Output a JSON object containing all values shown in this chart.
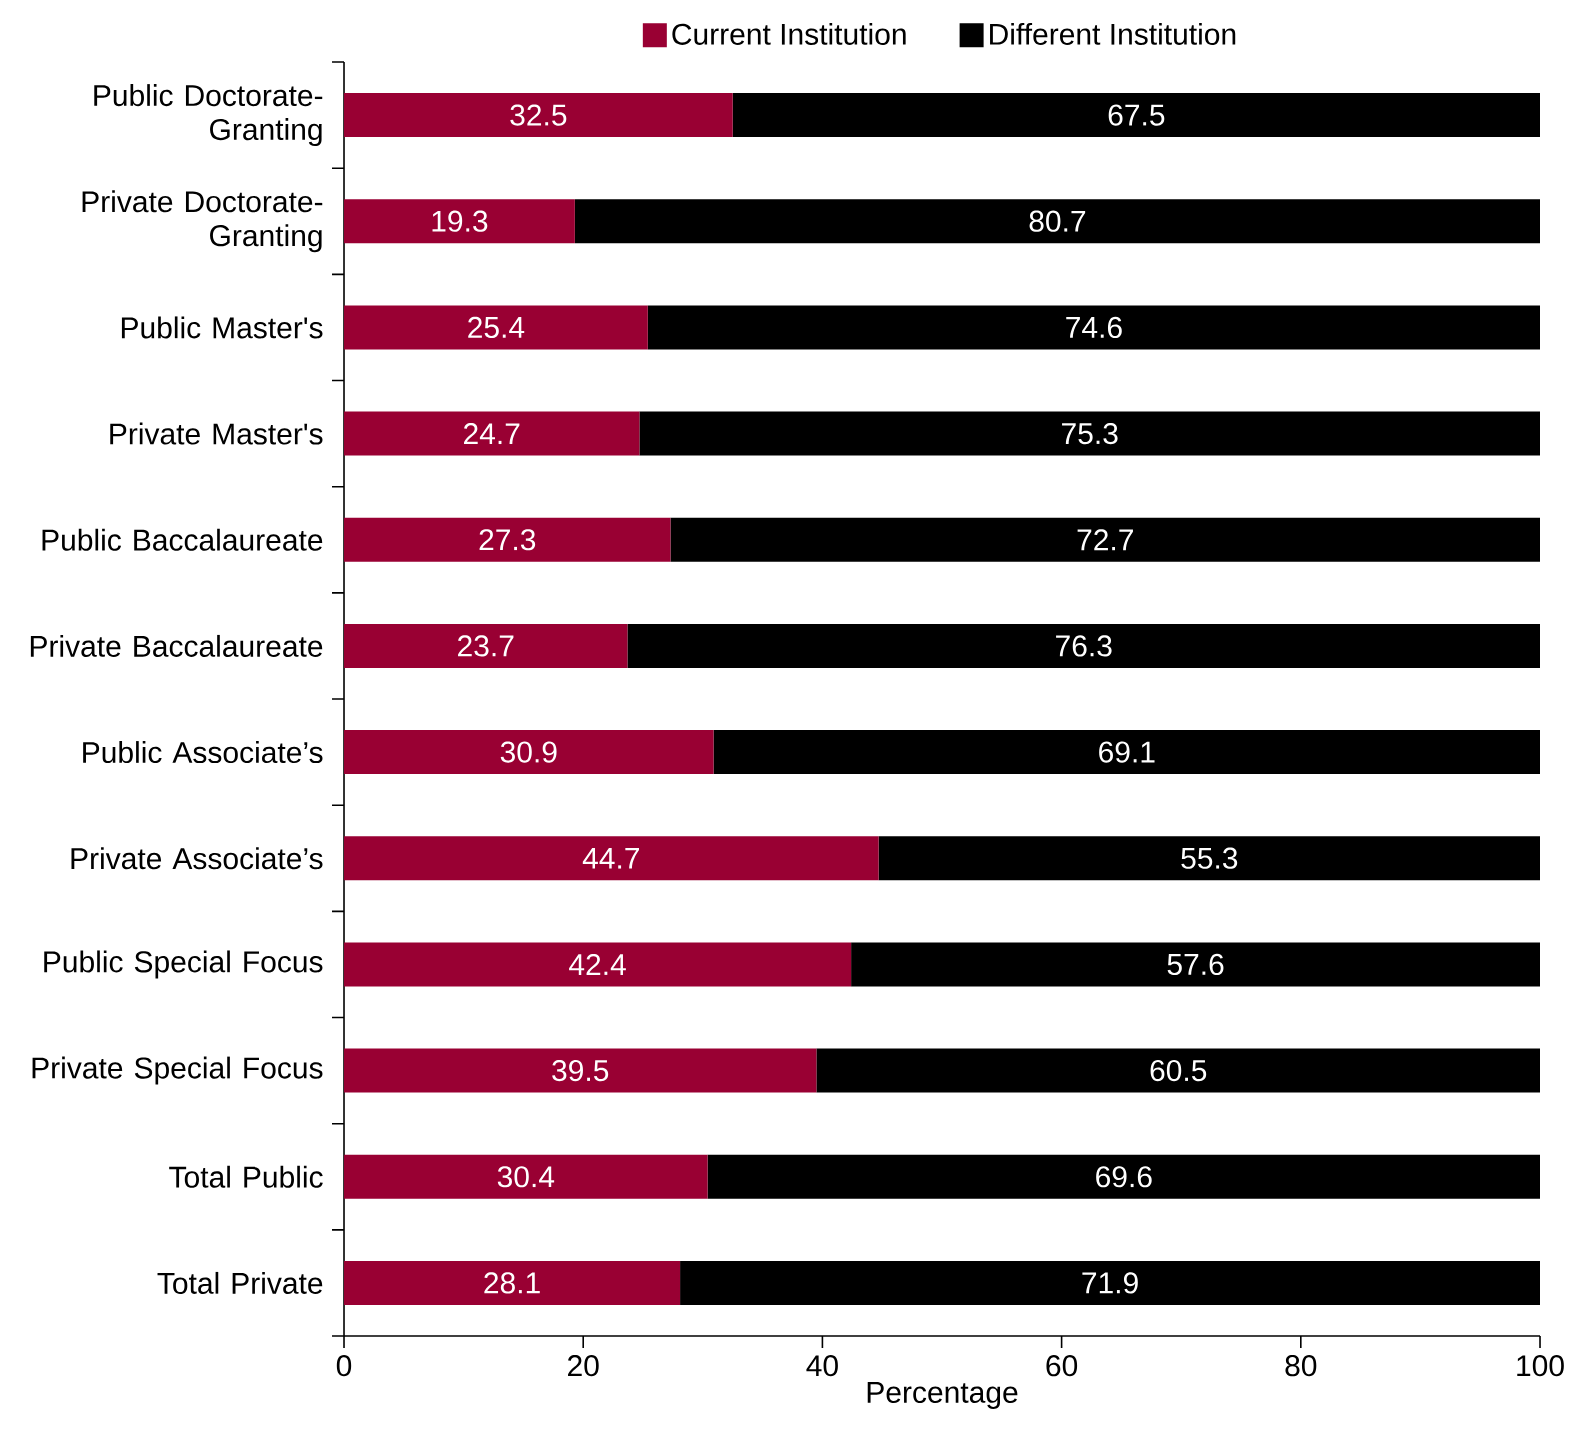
{
  "chart_data": {
    "type": "bar",
    "orientation": "horizontal",
    "stacked": true,
    "categories": [
      "Public Doctorate-Granting",
      "Private Doctorate-Granting",
      "Public Master's",
      "Private Master's",
      "Public Baccalaureate",
      "Private Baccalaureate",
      "Public Associate’s",
      "Private Associate’s",
      "Public Special Focus",
      "Private Special Focus",
      "Total Public",
      "Total Private"
    ],
    "series": [
      {
        "name": "Current Institution",
        "color": "#990033",
        "values": [
          32.5,
          19.3,
          25.4,
          24.7,
          27.3,
          23.7,
          30.9,
          44.7,
          42.4,
          39.5,
          30.4,
          28.1
        ]
      },
      {
        "name": "Different Institution",
        "color": "#000000",
        "values": [
          67.5,
          80.7,
          74.6,
          75.3,
          72.7,
          76.3,
          69.1,
          55.3,
          57.6,
          60.5,
          69.6,
          71.9
        ]
      }
    ],
    "xlabel": "Percentage",
    "xlim": [
      0,
      100
    ],
    "xticks": [
      0,
      20,
      40,
      60,
      80,
      100
    ],
    "legend": "top",
    "data_labels": true
  }
}
